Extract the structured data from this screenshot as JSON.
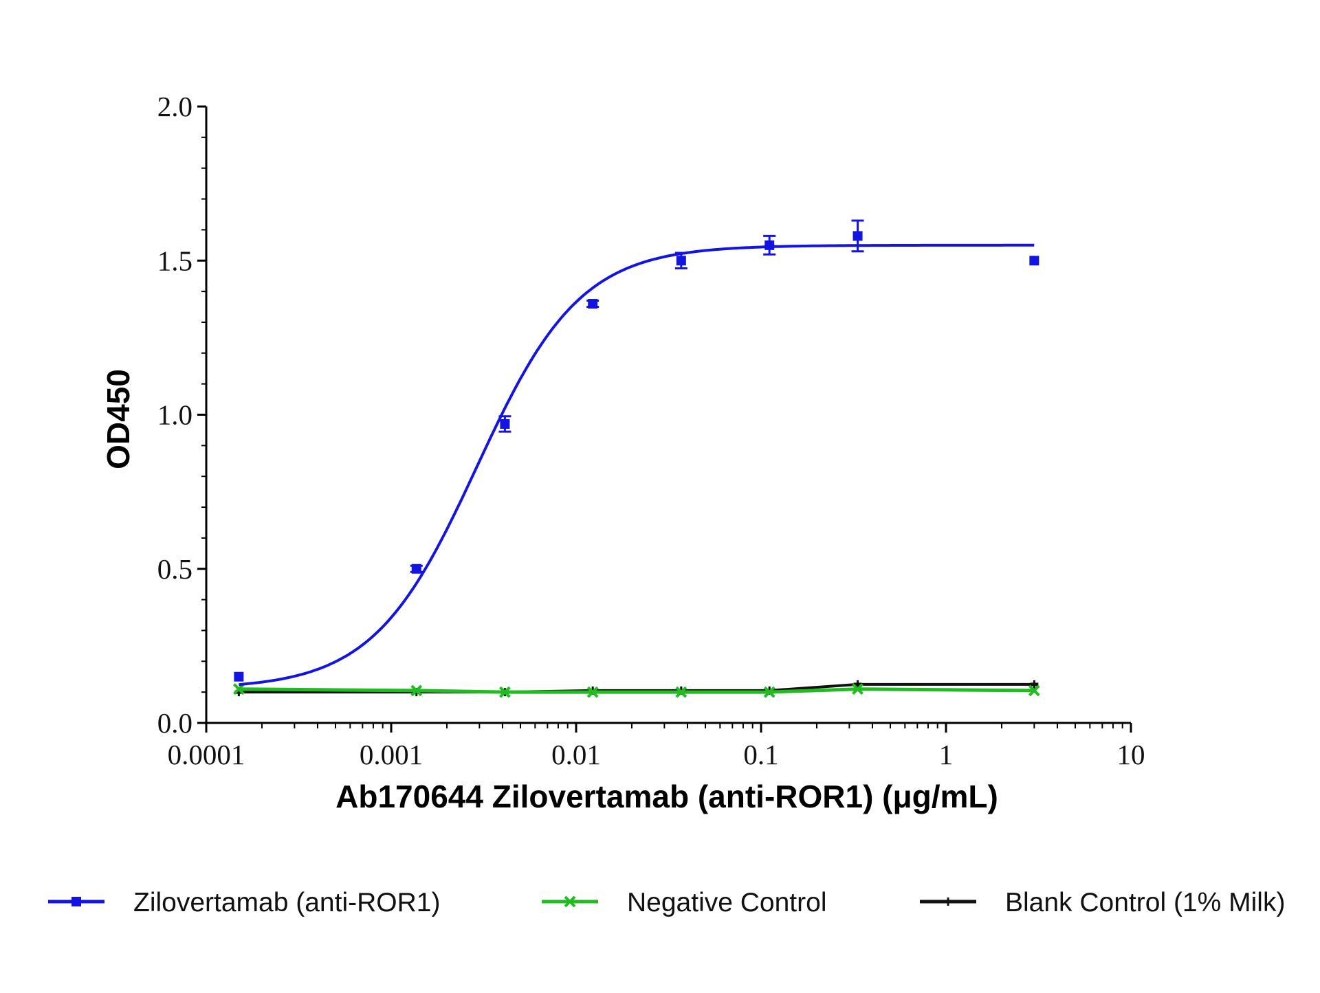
{
  "chart_data": {
    "type": "scatter",
    "title": "",
    "xlabel": "Ab170644 Zilovertamab (anti-ROR1) (μg/mL)",
    "ylabel": "OD450",
    "xscale": "log",
    "xlim": [
      0.0001,
      10
    ],
    "ylim": [
      0,
      2.0
    ],
    "x_ticks": [
      0.0001,
      0.001,
      0.01,
      0.1,
      1,
      10
    ],
    "x_tick_labels": [
      "0.0001",
      "0.001",
      "0.01",
      "0.1",
      "1",
      "10"
    ],
    "y_ticks": [
      0,
      0.5,
      1.0,
      1.5,
      2.0
    ],
    "y_tick_labels": [
      "0.0",
      "0.5",
      "1.0",
      "1.5",
      "2.0"
    ],
    "grid": false,
    "legend_position": "bottom",
    "series": [
      {
        "name": "Zilovertamab (anti-ROR1)",
        "color": "#1414e0",
        "marker": "square",
        "fit": "4PL sigmoid",
        "x": [
          0.00015,
          0.00137,
          0.00412,
          0.0123,
          0.037,
          0.111,
          0.333,
          3.0
        ],
        "y": [
          0.15,
          0.5,
          0.97,
          1.36,
          1.5,
          1.55,
          1.58,
          1.5
        ],
        "error": [
          0.0,
          0.01,
          0.025,
          0.01,
          0.025,
          0.03,
          0.05,
          0.0
        ],
        "fit_params": {
          "bottom": 0.11,
          "top": 1.55,
          "ec50": 0.0029,
          "hill": 1.55
        }
      },
      {
        "name": "Negative Control",
        "color": "#22bb22",
        "marker": "x",
        "x": [
          0.00015,
          0.00137,
          0.00412,
          0.0123,
          0.037,
          0.111,
          0.333,
          3.0
        ],
        "y": [
          0.11,
          0.105,
          0.1,
          0.1,
          0.1,
          0.1,
          0.11,
          0.105
        ]
      },
      {
        "name": "Blank Control (1% Milk)",
        "color": "#111111",
        "marker": "dash",
        "x": [
          0.00015,
          0.00137,
          0.00412,
          0.0123,
          0.037,
          0.111,
          0.333,
          3.0
        ],
        "y": [
          0.1,
          0.1,
          0.1,
          0.105,
          0.105,
          0.105,
          0.125,
          0.125
        ]
      }
    ]
  }
}
